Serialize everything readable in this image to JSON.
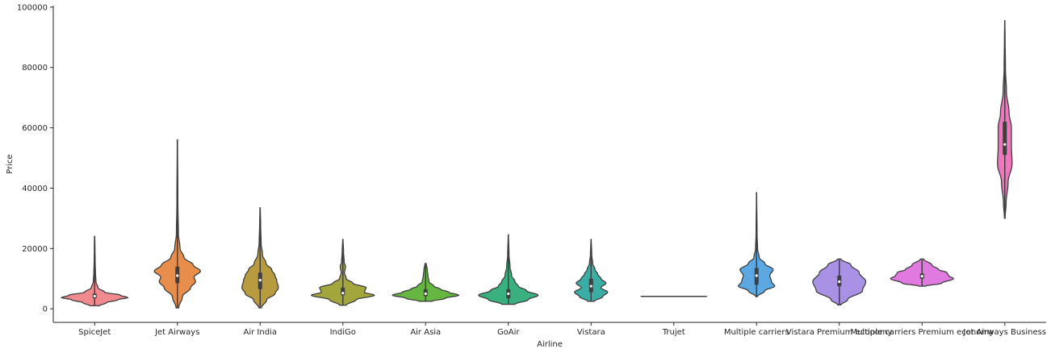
{
  "chart_data": {
    "type": "violin",
    "title": "",
    "xlabel": "Airline",
    "ylabel": "Price",
    "ylim": [
      -4500,
      100500
    ],
    "yticks": [
      0,
      20000,
      40000,
      60000,
      80000,
      100000
    ],
    "ytick_labels": [
      "0",
      "20000",
      "40000",
      "60000",
      "80000",
      "100000"
    ],
    "grid": false,
    "categories": [
      "SpiceJet",
      "Jet Airways",
      "Air India",
      "IndiGo",
      "Air Asia",
      "GoAir",
      "Vistara",
      "Trujet",
      "Multiple carriers",
      "Vistara Premium economy",
      "Multiple carriers Premium economy",
      "Jet Airways Business"
    ],
    "colors": [
      "#f08a8f",
      "#e88e4c",
      "#b89b3e",
      "#a3a63c",
      "#66b742",
      "#3ab07e",
      "#3aada5",
      "#3aa8be",
      "#5ba8e3",
      "#a992e6",
      "#e07ae0",
      "#f076be"
    ],
    "violins": [
      {
        "name": "SpiceJet",
        "min": 1000,
        "max": 24000,
        "q1": 3500,
        "median": 4200,
        "q3": 5000,
        "profile": [
          [
            1000,
            0.14
          ],
          [
            2000,
            0.35
          ],
          [
            3000,
            0.7
          ],
          [
            3700,
            1.0
          ],
          [
            4500,
            0.78
          ],
          [
            5500,
            0.3
          ],
          [
            7000,
            0.1
          ],
          [
            9000,
            0.04
          ],
          [
            12000,
            0.025
          ],
          [
            16000,
            0.015
          ],
          [
            20000,
            0.01
          ],
          [
            24000,
            0.005
          ]
        ]
      },
      {
        "name": "Jet Airways",
        "min": 300,
        "max": 56000,
        "q1": 8500,
        "median": 11000,
        "q3": 14000,
        "profile": [
          [
            300,
            0.04
          ],
          [
            4000,
            0.15
          ],
          [
            7000,
            0.4
          ],
          [
            9000,
            0.55
          ],
          [
            10500,
            0.5
          ],
          [
            12500,
            0.7
          ],
          [
            14500,
            0.48
          ],
          [
            17000,
            0.2
          ],
          [
            20000,
            0.08
          ],
          [
            25000,
            0.03
          ],
          [
            35000,
            0.015
          ],
          [
            56000,
            0.005
          ]
        ]
      },
      {
        "name": "Air India",
        "min": 300,
        "max": 33500,
        "q1": 6500,
        "median": 9500,
        "q3": 12000,
        "profile": [
          [
            300,
            0.04
          ],
          [
            3000,
            0.2
          ],
          [
            5000,
            0.45
          ],
          [
            7000,
            0.55
          ],
          [
            9500,
            0.5
          ],
          [
            11000,
            0.45
          ],
          [
            13000,
            0.35
          ],
          [
            15000,
            0.18
          ],
          [
            18000,
            0.07
          ],
          [
            22000,
            0.03
          ],
          [
            28000,
            0.015
          ],
          [
            33500,
            0.005
          ]
        ]
      },
      {
        "name": "IndiGo",
        "min": 1200,
        "max": 23000,
        "q1": 4500,
        "median": 5200,
        "q3": 7000,
        "profile": [
          [
            1200,
            0.1
          ],
          [
            3000,
            0.4
          ],
          [
            4500,
            0.95
          ],
          [
            5500,
            0.65
          ],
          [
            7000,
            0.7
          ],
          [
            8500,
            0.3
          ],
          [
            10000,
            0.1
          ],
          [
            12000,
            0.05
          ],
          [
            14000,
            0.08
          ],
          [
            15500,
            0.04
          ],
          [
            19000,
            0.02
          ],
          [
            23000,
            0.005
          ]
        ]
      },
      {
        "name": "Air Asia",
        "min": 2500,
        "max": 15000,
        "q1": 4200,
        "median": 5000,
        "q3": 6500,
        "profile": [
          [
            2500,
            0.2
          ],
          [
            3500,
            0.6
          ],
          [
            4500,
            1.0
          ],
          [
            5500,
            0.7
          ],
          [
            6500,
            0.45
          ],
          [
            7500,
            0.25
          ],
          [
            9000,
            0.1
          ],
          [
            11000,
            0.07
          ],
          [
            13000,
            0.05
          ],
          [
            15000,
            0.02
          ]
        ]
      },
      {
        "name": "GoAir",
        "min": 1500,
        "max": 24500,
        "q1": 3500,
        "median": 5000,
        "q3": 6500,
        "profile": [
          [
            1500,
            0.2
          ],
          [
            3000,
            0.6
          ],
          [
            4500,
            0.9
          ],
          [
            6000,
            0.55
          ],
          [
            7500,
            0.3
          ],
          [
            9000,
            0.2
          ],
          [
            11000,
            0.1
          ],
          [
            14000,
            0.05
          ],
          [
            18000,
            0.02
          ],
          [
            24500,
            0.005
          ]
        ]
      },
      {
        "name": "Vistara",
        "min": 2500,
        "max": 23000,
        "q1": 5500,
        "median": 7500,
        "q3": 10000,
        "profile": [
          [
            2500,
            0.1
          ],
          [
            4000,
            0.35
          ],
          [
            5500,
            0.5
          ],
          [
            7000,
            0.3
          ],
          [
            8500,
            0.45
          ],
          [
            10000,
            0.3
          ],
          [
            11500,
            0.2
          ],
          [
            13000,
            0.12
          ],
          [
            15000,
            0.05
          ],
          [
            18000,
            0.02
          ],
          [
            23000,
            0.005
          ]
        ]
      },
      {
        "name": "Trujet",
        "min": 4100,
        "max": 4100,
        "q1": 4100,
        "median": 4100,
        "q3": 4100,
        "profile": [
          [
            4100,
            1.0
          ]
        ]
      },
      {
        "name": "Multiple carriers",
        "min": 4000,
        "max": 38500,
        "q1": 8000,
        "median": 11000,
        "q3": 13500,
        "profile": [
          [
            4000,
            0.02
          ],
          [
            6000,
            0.25
          ],
          [
            7500,
            0.55
          ],
          [
            9000,
            0.45
          ],
          [
            11000,
            0.4
          ],
          [
            13000,
            0.5
          ],
          [
            15000,
            0.25
          ],
          [
            17000,
            0.08
          ],
          [
            20000,
            0.03
          ],
          [
            25000,
            0.015
          ],
          [
            38500,
            0.003
          ]
        ]
      },
      {
        "name": "Vistara Premium economy",
        "min": 1300,
        "max": 16500,
        "q1": 7500,
        "median": 9000,
        "q3": 11000,
        "profile": [
          [
            1300,
            0.05
          ],
          [
            3000,
            0.25
          ],
          [
            6000,
            0.7
          ],
          [
            9000,
            0.8
          ],
          [
            12000,
            0.6
          ],
          [
            14500,
            0.35
          ],
          [
            16500,
            0.05
          ]
        ]
      },
      {
        "name": "Multiple carriers Premium economy",
        "min": 7500,
        "max": 16500,
        "q1": 10000,
        "median": 10800,
        "q3": 11700,
        "profile": [
          [
            7500,
            0.1
          ],
          [
            8500,
            0.6
          ],
          [
            10000,
            0.95
          ],
          [
            11000,
            0.8
          ],
          [
            12000,
            0.75
          ],
          [
            13000,
            0.5
          ],
          [
            14500,
            0.3
          ],
          [
            16500,
            0.05
          ]
        ]
      },
      {
        "name": "Jet Airways Business",
        "min": 30000,
        "max": 95500,
        "q1": 51000,
        "median": 54500,
        "q3": 62000,
        "profile": [
          [
            30000,
            0.01
          ],
          [
            35000,
            0.04
          ],
          [
            42000,
            0.1
          ],
          [
            48000,
            0.22
          ],
          [
            54000,
            0.2
          ],
          [
            60000,
            0.2
          ],
          [
            65000,
            0.13
          ],
          [
            72000,
            0.05
          ],
          [
            80000,
            0.02
          ],
          [
            90000,
            0.01
          ],
          [
            95500,
            0.003
          ]
        ]
      }
    ]
  }
}
